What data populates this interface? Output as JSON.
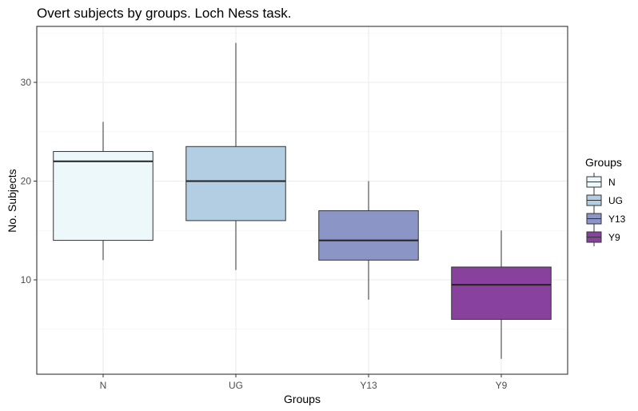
{
  "chart_data": {
    "type": "boxplot",
    "title": "Overt subjects by groups. Loch Ness task.",
    "xlabel": "Groups",
    "ylabel": "No. Subjects",
    "ylim": [
      0,
      35
    ],
    "yticks": [
      10,
      20,
      30
    ],
    "grid": true,
    "legend": {
      "title": "Groups",
      "placement": "right"
    },
    "categories": [
      "N",
      "UG",
      "Y13",
      "Y9"
    ],
    "boxes": [
      {
        "name": "N",
        "min": 12,
        "q1": 14,
        "median": 22,
        "q3": 23,
        "max": 26,
        "color": "#edf8fb"
      },
      {
        "name": "UG",
        "min": 11,
        "q1": 16,
        "median": 20,
        "q3": 23.5,
        "max": 34,
        "color": "#b3cde3"
      },
      {
        "name": "Y13",
        "min": 8,
        "q1": 12,
        "median": 14,
        "q3": 17,
        "max": 20,
        "color": "#8c96c6"
      },
      {
        "name": "Y9",
        "min": 2,
        "q1": 6,
        "median": 9.5,
        "q3": 11.3,
        "max": 15,
        "color": "#88419d"
      }
    ]
  }
}
